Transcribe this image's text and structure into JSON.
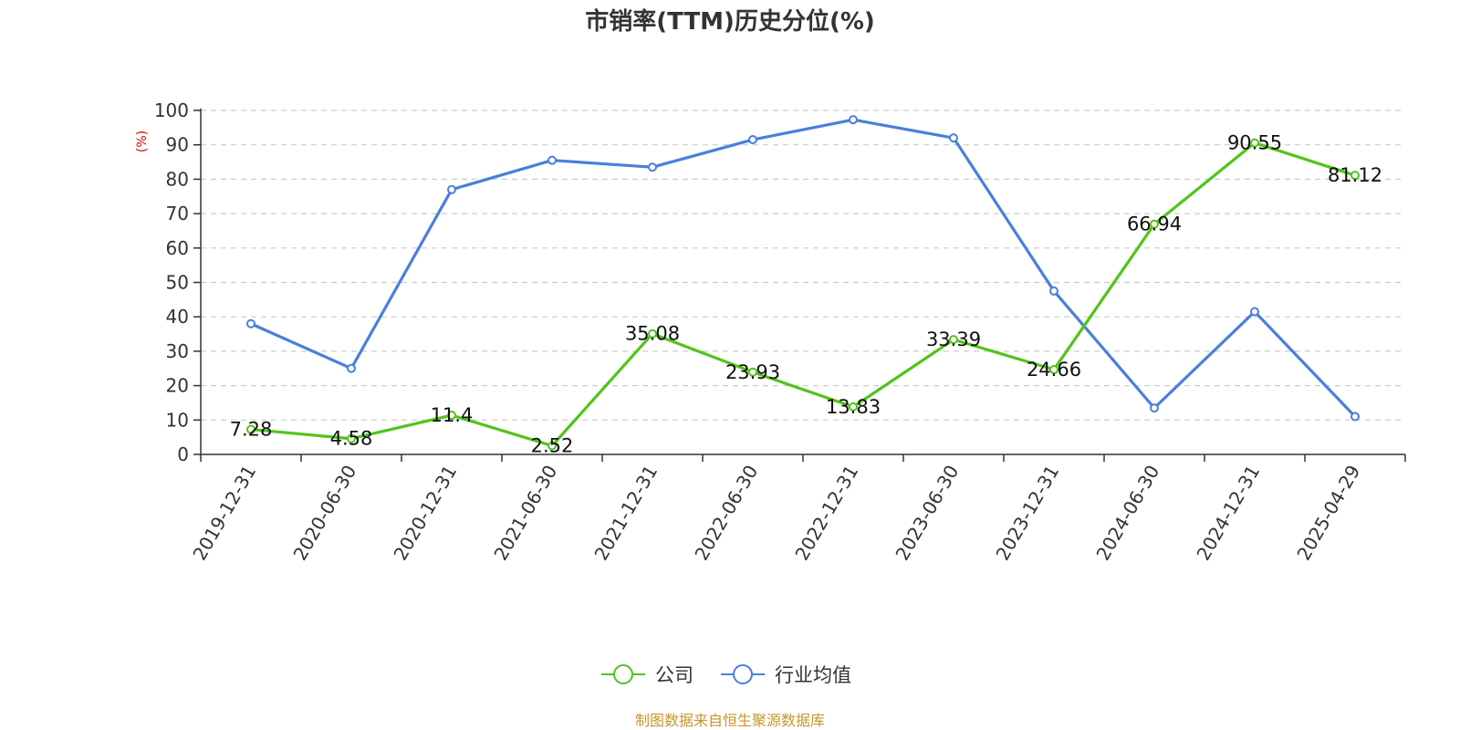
{
  "chart_data": {
    "type": "line",
    "title": "市销率(TTM)历史分位(%)",
    "ylabel": "(%)",
    "ylim": [
      0,
      100
    ],
    "yticks": [
      0,
      10,
      20,
      30,
      40,
      50,
      60,
      70,
      80,
      90,
      100
    ],
    "grid": true,
    "legend_position": "bottom",
    "categories": [
      "2019-12-31",
      "2020-06-30",
      "2020-12-31",
      "2021-06-30",
      "2021-12-31",
      "2022-06-30",
      "2022-12-31",
      "2023-06-30",
      "2023-12-31",
      "2024-06-30",
      "2024-12-31",
      "2025-04-29"
    ],
    "series": [
      {
        "name": "公司",
        "color": "#52c41a",
        "values": [
          7.28,
          4.58,
          11.4,
          2.52,
          35.08,
          23.93,
          13.83,
          33.39,
          24.66,
          66.94,
          90.55,
          81.12
        ],
        "labels": [
          "7.28",
          "4.58",
          "11.4",
          "2.52",
          "35.08",
          "23.93",
          "13.83",
          "33.39",
          "24.66",
          "66.94",
          "90.55",
          "81.12"
        ]
      },
      {
        "name": "行业均值",
        "color": "#4a7fdc",
        "values": [
          38,
          25,
          77,
          85.5,
          83.5,
          91.5,
          97.3,
          92,
          47.5,
          13.5,
          41.5,
          11
        ]
      }
    ],
    "source": "制图数据来自恒生聚源数据库",
    "source_color": "#c8962a",
    "ylabel_color": "#e00000"
  }
}
